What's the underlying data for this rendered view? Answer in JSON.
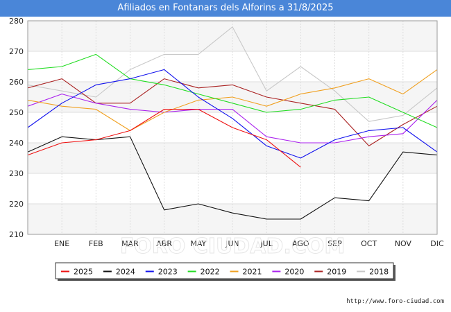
{
  "chart_data": {
    "type": "line",
    "title": "Afiliados en Fontanars dels Alforins a 31/8/2025",
    "categories": [
      "",
      "ENE",
      "FEB",
      "MAR",
      "ABR",
      "MAY",
      "JUN",
      "JUL",
      "AGO",
      "SEP",
      "OCT",
      "NOV",
      "DIC"
    ],
    "ylim": [
      210,
      280
    ],
    "yticks": [
      210,
      220,
      230,
      240,
      250,
      260,
      270,
      280
    ],
    "grid": true,
    "legend_position": "bottom",
    "watermark": "FORO CIUDAD.COM",
    "series": [
      {
        "name": "2025",
        "color": "#ee1111",
        "values": [
          236,
          240,
          241,
          244,
          251,
          251,
          245,
          241,
          232,
          null,
          null,
          null,
          null
        ]
      },
      {
        "name": "2024",
        "color": "#111111",
        "values": [
          237,
          242,
          241,
          242,
          218,
          220,
          217,
          215,
          215,
          222,
          221,
          237,
          236
        ]
      },
      {
        "name": "2023",
        "color": "#1111ee",
        "values": [
          245,
          253,
          259,
          261,
          264,
          255,
          248,
          239,
          235,
          241,
          244,
          245,
          237
        ]
      },
      {
        "name": "2022",
        "color": "#22dd22",
        "values": [
          264,
          265,
          269,
          261,
          259,
          256,
          253,
          250,
          251,
          254,
          255,
          250,
          245
        ]
      },
      {
        "name": "2021",
        "color": "#f0a020",
        "values": [
          254,
          252,
          251,
          244,
          250,
          254,
          255,
          252,
          256,
          258,
          261,
          256,
          264
        ]
      },
      {
        "name": "2020",
        "color": "#aa22ee",
        "values": [
          252,
          256,
          253,
          251,
          250,
          251,
          251,
          242,
          240,
          240,
          242,
          243,
          254
        ]
      },
      {
        "name": "2019",
        "color": "#aa2222",
        "values": [
          258,
          261,
          253,
          253,
          261,
          258,
          259,
          255,
          253,
          251,
          239,
          246,
          252
        ]
      },
      {
        "name": "2018",
        "color": "#c8c8c8",
        "values": [
          259,
          257,
          255,
          264,
          269,
          269,
          278,
          257,
          265,
          257,
          247,
          249,
          258
        ]
      }
    ]
  },
  "footer": {
    "url": "http://www.foro-ciudad.com"
  }
}
